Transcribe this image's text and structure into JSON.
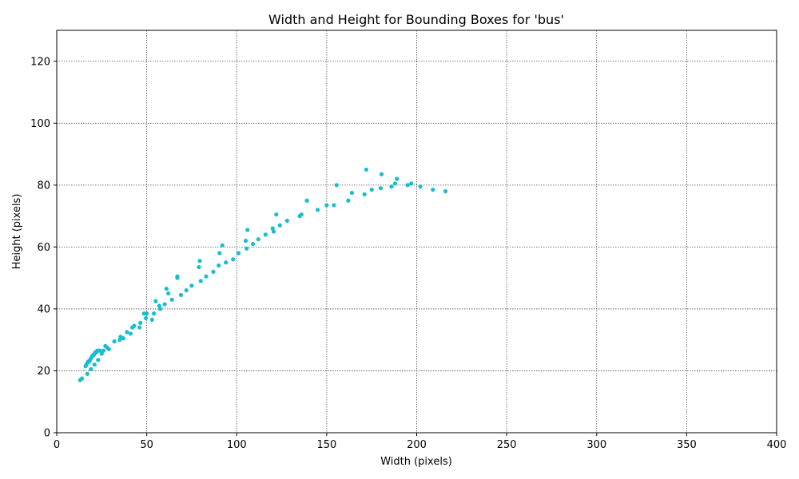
{
  "chart_data": {
    "type": "scatter",
    "title": "Width and Height for Bounding Boxes for 'bus'",
    "xlabel": "Width (pixels)",
    "ylabel": "Height (pixels)",
    "xlim": [
      0,
      400
    ],
    "ylim": [
      0,
      130
    ],
    "xticks": [
      0,
      50,
      100,
      150,
      200,
      250,
      300,
      350,
      400
    ],
    "yticks": [
      0,
      20,
      40,
      60,
      80,
      100,
      120
    ],
    "grid": true,
    "legend": "none",
    "marker_color": "#17becf",
    "series": [
      {
        "x": [
          13,
          14,
          16,
          16.5,
          17,
          17.5,
          18,
          18.5,
          19,
          19.5,
          20,
          20.5,
          21,
          21.5,
          22,
          22.5,
          23,
          24,
          17,
          19,
          21,
          23,
          25,
          26,
          27,
          28,
          29,
          32,
          35,
          35.5,
          37,
          39,
          41,
          42,
          43,
          46,
          46.5,
          48.5,
          49.5,
          50,
          53,
          54,
          55,
          57,
          57.5,
          60,
          61,
          62,
          64,
          67,
          67,
          69,
          72,
          75,
          79,
          79.5,
          80,
          83,
          87,
          90,
          90.5,
          92,
          94,
          98,
          101,
          105,
          105.5,
          106,
          109,
          112,
          116,
          120,
          120.5,
          122,
          124,
          128,
          135,
          136,
          139,
          145,
          150,
          154,
          155.5,
          162,
          164,
          171,
          172,
          175,
          180,
          180.5,
          186,
          188,
          189,
          195,
          197,
          202,
          209,
          216
        ],
        "y": [
          17,
          17.5,
          21.5,
          22,
          22.5,
          23,
          23,
          23.5,
          24,
          24.5,
          25,
          25,
          25.5,
          26,
          26,
          26.5,
          26.5,
          26.5,
          19,
          20.5,
          22,
          23.5,
          25.5,
          26.5,
          28,
          27.5,
          27,
          29.5,
          30,
          31,
          30.5,
          32.5,
          32,
          34,
          34.5,
          34,
          35.5,
          38.5,
          37,
          38.5,
          36.5,
          38.5,
          42.5,
          41,
          40,
          41.5,
          46.5,
          45,
          43,
          50.5,
          50,
          44.5,
          46,
          47.5,
          53.5,
          55.5,
          49,
          50.5,
          52,
          54,
          58,
          60.5,
          55,
          56,
          58,
          62,
          59.5,
          65.5,
          61,
          62.5,
          64,
          66,
          65,
          70.5,
          67,
          68.5,
          70,
          70.5,
          75,
          72,
          73.5,
          73.5,
          80,
          75,
          77.5,
          77,
          85,
          78.5,
          79,
          83.5,
          79.5,
          80.5,
          82,
          80,
          80.5,
          79.5,
          78.5,
          78
        ]
      }
    ]
  }
}
